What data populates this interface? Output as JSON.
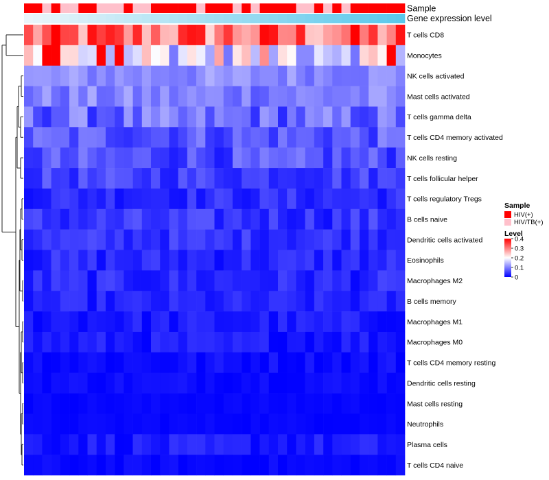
{
  "chart_data": {
    "type": "heatmap",
    "row_labels": [
      "T cells CD8",
      "Monocytes",
      "NK cells activated",
      "Mast cells activated",
      "T cells gamma delta",
      "T cells CD4 memory activated",
      "NK cells resting",
      "T cells follicular helper",
      "T cells regulatory  Tregs",
      "B cells naive",
      "Dendritic cells activated",
      "Eosinophils",
      "Macrophages M2",
      "B cells memory",
      "Macrophages M1",
      "Macrophages M0",
      "T cells CD4 memory resting",
      "Dendritic cells resting",
      "Mast cells resting",
      "Neutrophils",
      "Plasma cells",
      "T cells CD4 naive"
    ],
    "n_samples": 42,
    "annotations": {
      "sample_title": "Sample",
      "expression_title": "Gene expression level",
      "sample_groups": [
        1,
        1,
        0,
        1,
        0,
        0,
        1,
        1,
        0,
        0,
        0,
        1,
        0,
        0,
        1,
        1,
        1,
        1,
        1,
        0,
        1,
        1,
        1,
        0,
        1,
        0,
        1,
        1,
        1,
        1,
        0,
        0,
        1,
        0,
        1,
        0,
        1,
        1,
        1,
        1,
        1,
        1
      ]
    },
    "legend": {
      "sample_title": "Sample",
      "sample_entries": [
        {
          "label": "HIV(+)",
          "color": "#ff0000"
        },
        {
          "label": "HIV/TB(+)",
          "color": "#ffc0cb"
        }
      ],
      "level_title": "Level",
      "level_ticks": [
        "0.4",
        "0.3",
        "0.2",
        "0.1",
        "0"
      ],
      "level_values": [
        0.4,
        0.3,
        0.2,
        0.1,
        0
      ]
    },
    "color_scale": {
      "min": 0,
      "mid": 0.2,
      "max": 0.4,
      "low": "#0000ff",
      "mid_color": "#ffffff",
      "high": "#ff0000"
    },
    "row_base_levels": [
      0.31,
      0.19,
      0.11,
      0.1,
      0.08,
      0.07,
      0.06,
      0.05,
      0.035,
      0.04,
      0.04,
      0.03,
      0.03,
      0.025,
      0.02,
      0.02,
      0.01,
      0.01,
      0.005,
      0.005,
      0.02,
      0.005
    ],
    "row_variation": [
      0.1,
      0.1,
      0.03,
      0.035,
      0.05,
      0.04,
      0.04,
      0.03,
      0.025,
      0.03,
      0.025,
      0.025,
      0.025,
      0.02,
      0.02,
      0.02,
      0.015,
      0.01,
      0.005,
      0.005,
      0.02,
      0.01
    ]
  }
}
